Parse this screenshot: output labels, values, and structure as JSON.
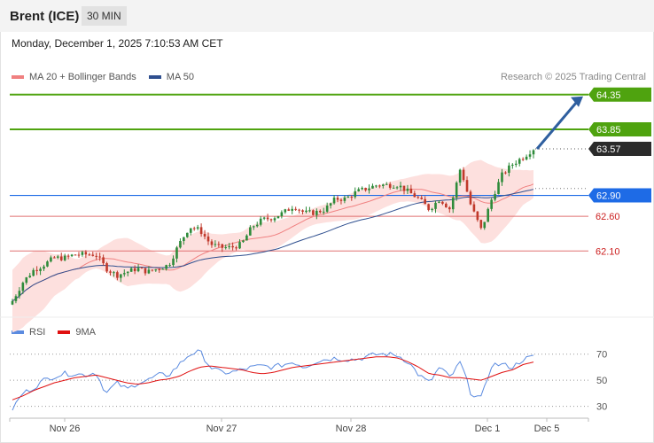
{
  "header": {
    "instrument": "Brent (ICE)",
    "timeframe": "30 MIN"
  },
  "datetime": "Monday, December 1, 2025 7:10:53 AM CET",
  "credit": "Research © 2025 Trading Central",
  "colors": {
    "up": "#2e8b3a",
    "down": "#c0392b",
    "ma20": "#f08080",
    "ma50": "#2f4f8f",
    "band_fill": "#fde0de",
    "resistance": "#4fa30f",
    "pivot": "#1e6be6",
    "support": "#e07070",
    "rsi": "#5b8be0",
    "rsi_ma": "#e01010",
    "arrow": "#2f5f9f"
  },
  "chart_data": [
    {
      "type": "candlestick",
      "legend": [
        "MA 20 + Bollinger Bands",
        "MA 50"
      ],
      "x_labels": [
        "Nov 26",
        "Nov 27",
        "Nov 28",
        "Dec 1",
        "Dec 5"
      ],
      "levels": [
        {
          "value": 64.35,
          "label": "64.35",
          "kind": "resistance"
        },
        {
          "value": 63.85,
          "label": "63.85",
          "kind": "resistance"
        },
        {
          "value": 63.57,
          "label": "63.57",
          "kind": "last"
        },
        {
          "value": 62.9,
          "label": "62.90",
          "kind": "pivot"
        },
        {
          "value": 62.6,
          "label": "62.60",
          "kind": "support"
        },
        {
          "value": 62.1,
          "label": "62.10",
          "kind": "support"
        }
      ],
      "ylim": [
        61.25,
        64.5
      ],
      "price_path": [
        61.38,
        61.65,
        61.82,
        61.9,
        62.0,
        62.0,
        62.05,
        62.05,
        62.05,
        61.85,
        61.75,
        61.8,
        61.85,
        61.8,
        61.85,
        61.9,
        62.2,
        62.45,
        62.4,
        62.2,
        62.15,
        62.15,
        62.2,
        62.45,
        62.55,
        62.58,
        62.65,
        62.75,
        62.65,
        62.65,
        62.7,
        62.85,
        62.85,
        62.95,
        63.0,
        63.05,
        63.05,
        63.05,
        62.95,
        62.85,
        62.7,
        62.85,
        62.7,
        63.3,
        62.75,
        62.4,
        62.85,
        63.2,
        63.35,
        63.45,
        63.57
      ],
      "bollinger_width": [
        0.45,
        0.5,
        0.48,
        0.42,
        0.3,
        0.25,
        0.15,
        0.12,
        0.12,
        0.2,
        0.3,
        0.35,
        0.3,
        0.25,
        0.22,
        0.2,
        0.35,
        0.38,
        0.35,
        0.25,
        0.18,
        0.15,
        0.12,
        0.2,
        0.22,
        0.2,
        0.18,
        0.15,
        0.12,
        0.12,
        0.13,
        0.15,
        0.18,
        0.2,
        0.2,
        0.18,
        0.17,
        0.16,
        0.17,
        0.2,
        0.25,
        0.28,
        0.3,
        0.35,
        0.5,
        0.6,
        0.55,
        0.45,
        0.35,
        0.25,
        0.2
      ],
      "arrow": {
        "from": 63.57,
        "to": 64.35
      }
    },
    {
      "type": "line",
      "legend": [
        "RSI",
        "9MA"
      ],
      "y_ticks": [
        70,
        50,
        30
      ],
      "ylim": [
        25,
        80
      ],
      "rsi": [
        28,
        40,
        44,
        50,
        53,
        55,
        55,
        54,
        56,
        40,
        48,
        43,
        48,
        50,
        54,
        54,
        62,
        70,
        72,
        60,
        56,
        56,
        58,
        60,
        61,
        60,
        62,
        64,
        60,
        64,
        66,
        67,
        66,
        66,
        68,
        70,
        70,
        69,
        64,
        54,
        48,
        60,
        52,
        64,
        40,
        36,
        62,
        62,
        60,
        66,
        68
      ],
      "rsi_ma": [
        35,
        38,
        42,
        45,
        48,
        50,
        52,
        53,
        54,
        52,
        50,
        48,
        47,
        48,
        50,
        51,
        53,
        57,
        60,
        61,
        60,
        59,
        58,
        56,
        55,
        56,
        58,
        60,
        61,
        62,
        63,
        64,
        65,
        66,
        67,
        68,
        68,
        67,
        64,
        60,
        55,
        54,
        52,
        52,
        51,
        50,
        53,
        56,
        58,
        62,
        64
      ]
    }
  ]
}
